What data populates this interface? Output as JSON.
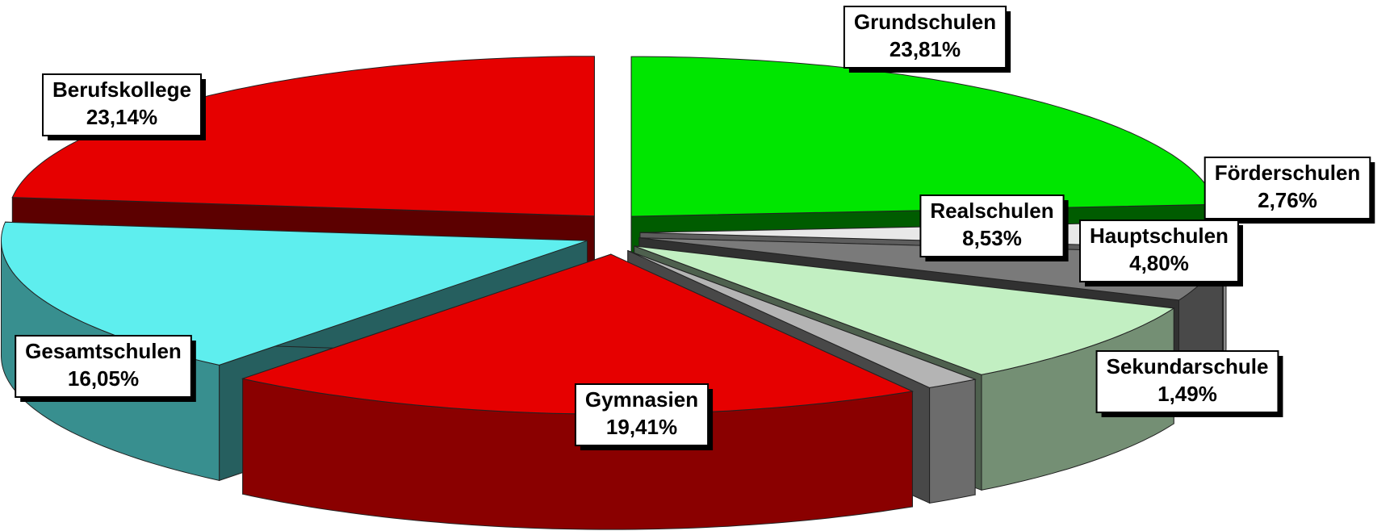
{
  "chart_data": {
    "type": "pie3d",
    "categories": [
      "Grundschulen",
      "Förderschulen",
      "Hauptschulen",
      "Realschulen",
      "Sekundarschule",
      "Gymnasien",
      "Gesamtschulen",
      "Berufskollege"
    ],
    "values": [
      23.81,
      2.76,
      4.8,
      8.53,
      1.49,
      19.41,
      16.05,
      23.14
    ],
    "value_labels": [
      "23,81%",
      "2,76%",
      "4,80%",
      "8,53%",
      "1,49%",
      "19,41%",
      "16,05%",
      "23,14%"
    ],
    "colors": [
      "#00e600",
      "#e8e8e8",
      "#7a7a7a",
      "#c2efc2",
      "#b4b4b4",
      "#e60000",
      "#5eeeee",
      "#e60000"
    ]
  }
}
